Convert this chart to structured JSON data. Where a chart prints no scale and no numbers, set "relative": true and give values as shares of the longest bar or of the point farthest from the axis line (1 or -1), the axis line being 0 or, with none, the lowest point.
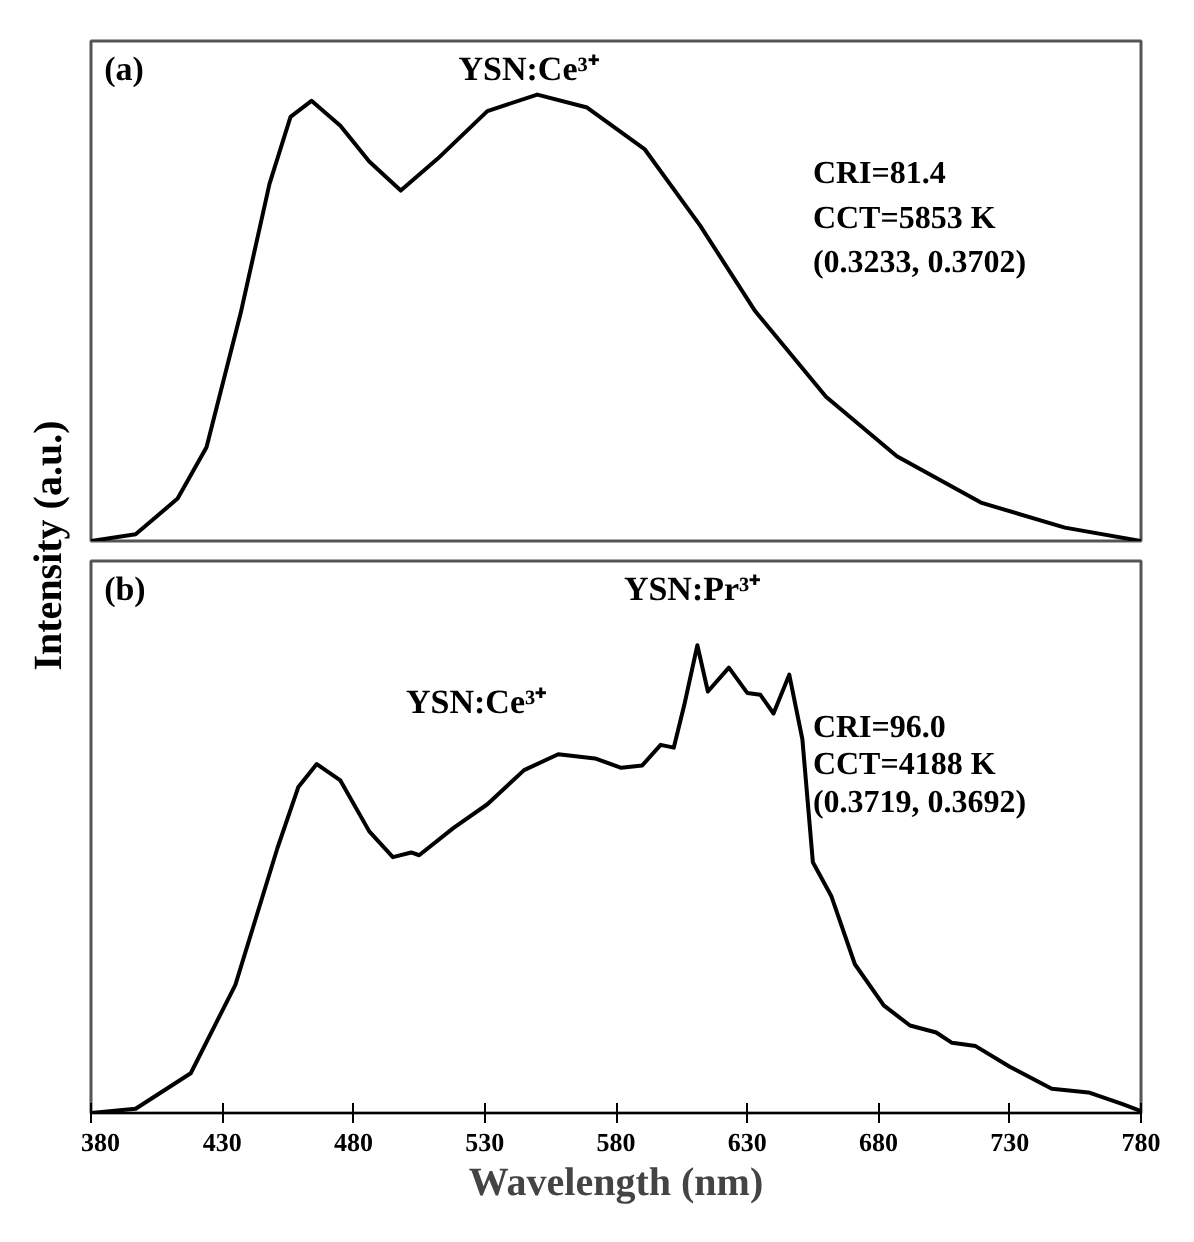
{
  "chart_data": [
    {
      "type": "line",
      "relative": true,
      "ylabel": "Intensity (a.u.)",
      "xlim": [
        380,
        780
      ],
      "tick_labels": false,
      "grid": false,
      "annotations": [
        "(a)",
        "YSN:Ce³⁺",
        "CRI=81.4",
        "CCT=5853 K",
        "(0.3233, 0.3702)"
      ],
      "series": [
        {
          "color": "#000000",
          "x": [
            380,
            397,
            413,
            424,
            437,
            448,
            456,
            464,
            475,
            486,
            498,
            512,
            531,
            550,
            569,
            591,
            612,
            633,
            660,
            687,
            719,
            751,
            780
          ],
          "values": [
            0,
            0.015,
            0.095,
            0.21,
            0.51,
            0.8,
            0.95,
            0.986,
            0.93,
            0.85,
            0.785,
            0.856,
            0.963,
            1,
            0.971,
            0.877,
            0.707,
            0.515,
            0.323,
            0.19,
            0.086,
            0.03,
            0
          ]
        }
      ]
    },
    {
      "type": "line",
      "relative": true,
      "xlabel": "Wavelength (nm)",
      "xlim": [
        380,
        780
      ],
      "xticks": [
        380,
        430,
        480,
        530,
        580,
        630,
        680,
        730,
        780
      ],
      "tick_labels": "x",
      "grid": false,
      "annotations": [
        "(b)",
        "YSN:Ce³⁺",
        "YSN:Pr³⁺",
        "CRI=96.0",
        "CCT=4188 K",
        "(0.3719, 0.3692)"
      ],
      "series": [
        {
          "color": "#000000",
          "x": [
            380,
            397,
            418,
            435,
            451,
            459,
            466,
            475,
            486,
            495,
            502,
            505,
            518,
            531,
            545,
            558,
            572,
            582,
            590,
            597,
            602,
            606,
            611,
            615,
            623,
            630,
            635,
            640,
            646,
            651,
            655,
            662,
            671,
            682,
            692,
            702,
            708,
            717,
            730,
            746,
            760,
            773,
            780
          ],
          "values": [
            0,
            0.009,
            0.085,
            0.274,
            0.566,
            0.697,
            0.746,
            0.711,
            0.602,
            0.547,
            0.557,
            0.551,
            0.609,
            0.66,
            0.733,
            0.767,
            0.758,
            0.738,
            0.743,
            0.787,
            0.781,
            0.872,
            1,
            0.901,
            0.952,
            0.898,
            0.894,
            0.854,
            0.937,
            0.799,
            0.536,
            0.464,
            0.318,
            0.23,
            0.187,
            0.172,
            0.15,
            0.143,
            0.099,
            0.052,
            0.044,
            0.019,
            0.004
          ]
        }
      ]
    }
  ]
}
